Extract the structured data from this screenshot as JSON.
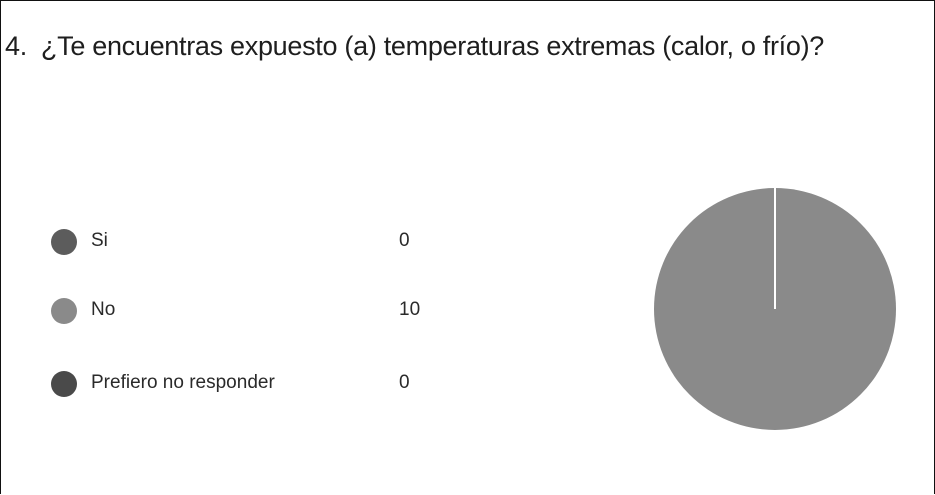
{
  "question": {
    "number": "4.",
    "text": "¿Te encuentras expuesto (a) temperaturas extremas (calor, o frío)?"
  },
  "chart_data": {
    "type": "pie",
    "title": "4. ¿Te encuentras expuesto (a) temperaturas extremas (calor, o frío)?",
    "categories": [
      "Si",
      "No",
      "Prefiero no responder"
    ],
    "values": [
      0,
      10,
      0
    ],
    "colors": [
      "#5c5c5c",
      "#8a8a8a",
      "#4a4a4a"
    ],
    "legend_placement": "left"
  }
}
